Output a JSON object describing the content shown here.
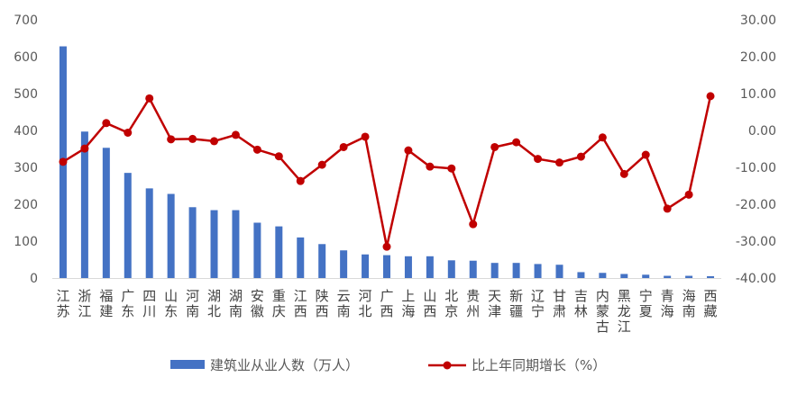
{
  "chart_data": {
    "type": "bar+line",
    "title": "",
    "xlabel": "",
    "categories": [
      "江苏",
      "浙江",
      "福建",
      "广东",
      "四川",
      "山东",
      "河南",
      "湖北",
      "湖南",
      "安徽",
      "重庆",
      "江西",
      "陕西",
      "云南",
      "河北",
      "广西",
      "上海",
      "山西",
      "北京",
      "贵州",
      "天津",
      "新疆",
      "辽宁",
      "甘肃",
      "吉林",
      "内蒙古",
      "黑龙江",
      "宁夏",
      "青海",
      "海南",
      "西藏"
    ],
    "series": [
      {
        "name": "建筑业从业人数（万人）",
        "type": "bar",
        "axis": "left",
        "color": "#4472C4",
        "values": [
          628,
          397,
          353,
          285,
          243,
          228,
          192,
          184,
          184,
          150,
          140,
          110,
          92,
          75,
          64,
          62,
          59,
          59,
          48,
          47,
          41,
          41,
          38,
          36,
          16,
          14,
          11,
          9,
          6,
          6,
          5
        ]
      },
      {
        "name": "比上年同期增长（%）",
        "type": "line",
        "axis": "right",
        "color": "#C00000",
        "values": [
          -8.5,
          -4.9,
          2.0,
          -0.6,
          8.7,
          -2.4,
          -2.3,
          -2.9,
          -1.2,
          -5.2,
          -7.0,
          -13.7,
          -9.3,
          -4.5,
          -1.7,
          -31.5,
          -5.4,
          -9.8,
          -10.3,
          -25.4,
          -4.5,
          -3.2,
          -7.7,
          -8.7,
          -7.1,
          -1.9,
          -11.8,
          -6.6,
          -21.2,
          -17.4,
          9.3
        ]
      }
    ],
    "left_axis": {
      "ylim": [
        0,
        700
      ],
      "ticks": [
        "0",
        "100",
        "200",
        "300",
        "400",
        "500",
        "600",
        "700"
      ]
    },
    "right_axis": {
      "ylim": [
        -40,
        30
      ],
      "ticks": [
        "-40.00",
        "-30.00",
        "-20.00",
        "-10.00",
        "0.00",
        "10.00",
        "20.00",
        "30.00"
      ]
    },
    "grid": false,
    "legend_position": "bottom"
  }
}
